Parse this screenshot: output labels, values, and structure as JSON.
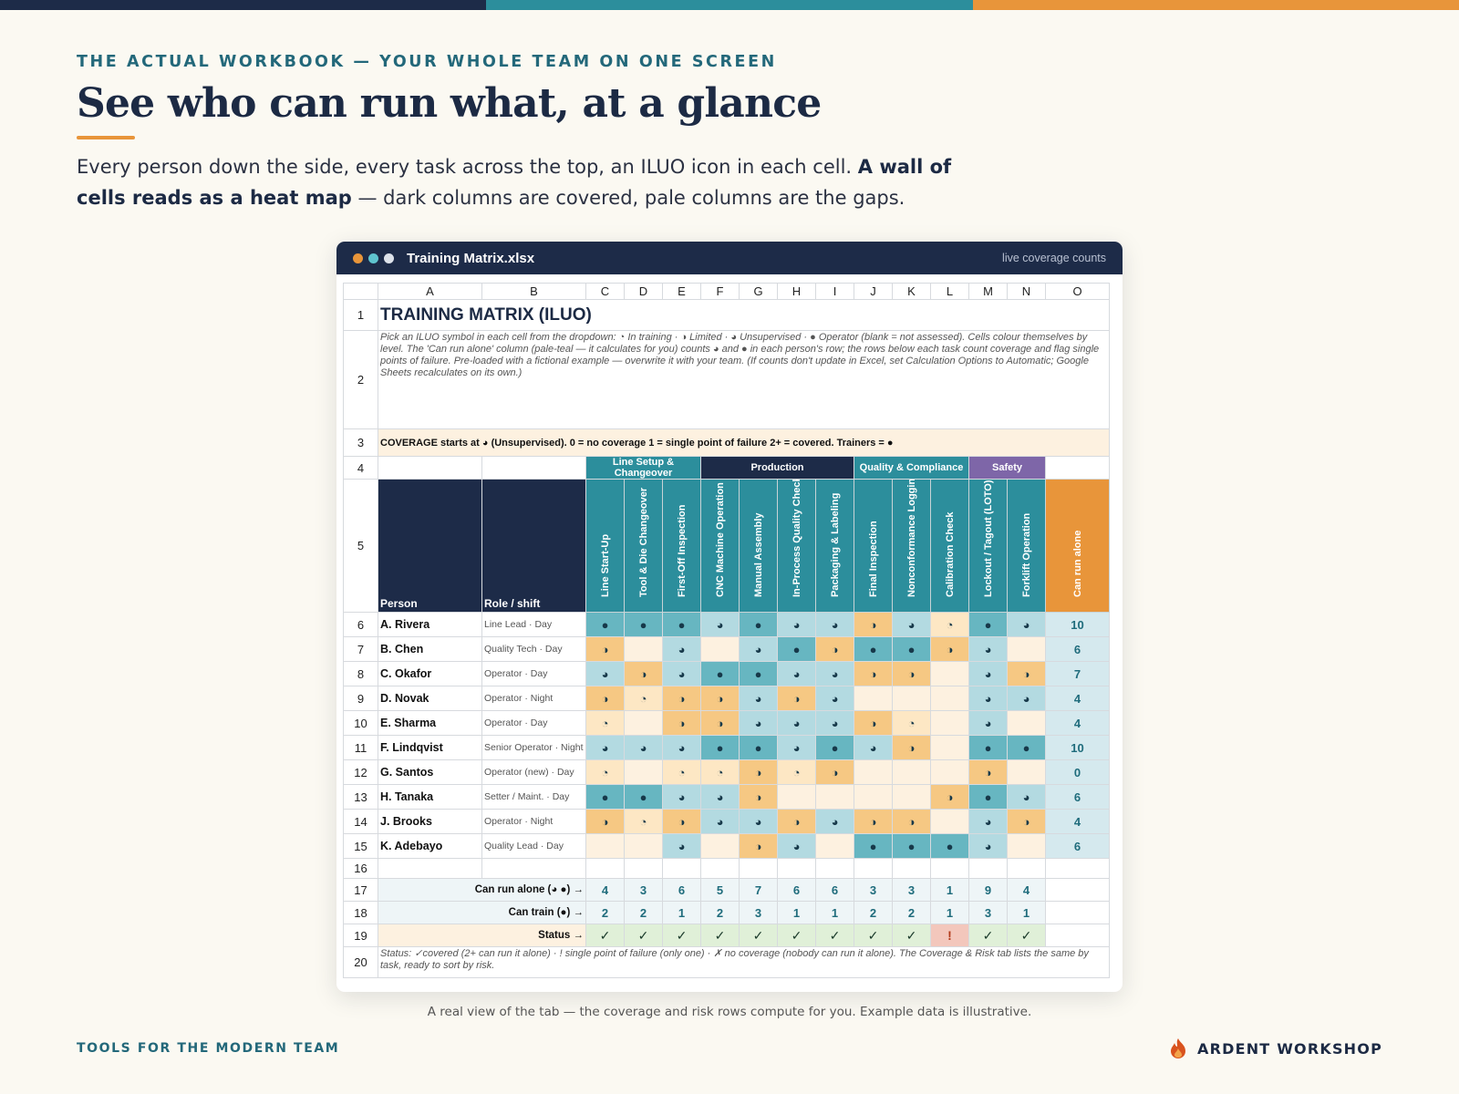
{
  "colors": {
    "navy": "#1d2b48",
    "teal": "#2c8e9c",
    "orange": "#e8953a",
    "purple": "#7e66a8",
    "accent_text": "#23687a"
  },
  "header": {
    "eyebrow": "THE ACTUAL WORKBOOK — YOUR WHOLE TEAM ON ONE SCREEN",
    "title": "See who can run what, at a glance",
    "lede_1": "Every person down the side, every task across the top, an ILUO icon in each cell. ",
    "lede_bold": "A wall of cells reads as a heat map",
    "lede_2": " — dark columns are covered, pale columns are the gaps."
  },
  "window": {
    "filename": "Training Matrix.xlsx",
    "right_label": "live coverage counts",
    "dots": [
      "#e8953a",
      "#5fc4cf",
      "#dde2ea"
    ]
  },
  "sheet": {
    "columns": [
      "A",
      "B",
      "C",
      "D",
      "E",
      "F",
      "G",
      "H",
      "I",
      "J",
      "K",
      "L",
      "M",
      "N",
      "O"
    ],
    "row_numbers": [
      "1",
      "2",
      "3",
      "4",
      "5",
      "6",
      "7",
      "8",
      "9",
      "10",
      "11",
      "12",
      "13",
      "14",
      "15",
      "16",
      "17",
      "18",
      "19",
      "20"
    ],
    "title": "TRAINING MATRIX  (ILUO)",
    "instructions": "Pick an ILUO symbol in each cell from the dropdown: ◔ In training · ◑ Limited · ◕ Unsupervised · ● Operator (blank = not assessed). Cells colour themselves by level. The 'Can run alone' column (pale-teal — it calculates for you) counts ◕ and ● in each person's row; the rows below each task count coverage and flag single points of failure. Pre-loaded with a fictional example — overwrite it with your team. (If counts don't update in Excel, set Calculation Options to Automatic; Google Sheets recalculates on its own.)",
    "coverage_note": "COVERAGE starts at ◕ (Unsupervised).   0 = no coverage   1 = single point of failure   2+ = covered.   Trainers = ●",
    "groups": [
      {
        "label": "Line Setup & Changeover",
        "span": 3,
        "color": "#2c8e9c"
      },
      {
        "label": "Production",
        "span": 4,
        "color": "#1d2b48"
      },
      {
        "label": "Quality & Compliance",
        "span": 3,
        "color": "#2c8e9c"
      },
      {
        "label": "Safety",
        "span": 2,
        "color": "#7e66a8"
      }
    ],
    "person_header": "Person",
    "role_header": "Role / shift",
    "tasks": [
      "Line Start-Up",
      "Tool & Die Changeover",
      "First-Off Inspection",
      "CNC Machine Operation",
      "Manual Assembly",
      "In-Process Quality Check",
      "Packaging & Labeling",
      "Final Inspection",
      "Nonconformance Logging",
      "Calibration Check",
      "Lockout / Tagout (LOTO)",
      "Forklift Operation"
    ],
    "alone_header": "Can run alone",
    "legend": {
      "0": "",
      "1": "◔",
      "2": "◑",
      "3": "◕",
      "4": "●"
    },
    "level_colors": {
      "0": "#fdf1e0",
      "1": "#fde7c4",
      "2": "#f6c883",
      "3": "#b3dae1",
      "4": "#67b6c1"
    },
    "people": [
      {
        "name": "A. Rivera",
        "role": "Line Lead · Day",
        "levels": [
          4,
          4,
          4,
          3,
          4,
          3,
          3,
          2,
          3,
          1,
          4,
          3
        ],
        "alone": "10"
      },
      {
        "name": "B. Chen",
        "role": "Quality Tech · Day",
        "levels": [
          2,
          0,
          3,
          0,
          3,
          4,
          2,
          4,
          4,
          2,
          3,
          0
        ],
        "alone": "6"
      },
      {
        "name": "C. Okafor",
        "role": "Operator · Day",
        "levels": [
          3,
          2,
          3,
          4,
          4,
          3,
          3,
          2,
          2,
          0,
          3,
          2
        ],
        "alone": "7"
      },
      {
        "name": "D. Novak",
        "role": "Operator · Night",
        "levels": [
          2,
          1,
          2,
          2,
          3,
          2,
          3,
          0,
          0,
          0,
          3,
          3
        ],
        "alone": "4"
      },
      {
        "name": "E. Sharma",
        "role": "Operator · Day",
        "levels": [
          1,
          0,
          2,
          2,
          3,
          3,
          3,
          2,
          1,
          0,
          3,
          0
        ],
        "alone": "4"
      },
      {
        "name": "F. Lindqvist",
        "role": "Senior Operator · Night",
        "levels": [
          3,
          3,
          3,
          4,
          4,
          3,
          4,
          3,
          2,
          0,
          4,
          4
        ],
        "alone": "10"
      },
      {
        "name": "G. Santos",
        "role": "Operator (new) · Day",
        "levels": [
          1,
          0,
          1,
          1,
          2,
          1,
          2,
          0,
          0,
          0,
          2,
          0
        ],
        "alone": "0"
      },
      {
        "name": "H. Tanaka",
        "role": "Setter / Maint. · Day",
        "levels": [
          4,
          4,
          3,
          3,
          2,
          0,
          0,
          0,
          0,
          2,
          4,
          3
        ],
        "alone": "6"
      },
      {
        "name": "J. Brooks",
        "role": "Operator · Night",
        "levels": [
          2,
          1,
          2,
          3,
          3,
          2,
          3,
          2,
          2,
          0,
          3,
          2
        ],
        "alone": "4"
      },
      {
        "name": "K. Adebayo",
        "role": "Quality Lead · Day",
        "levels": [
          0,
          0,
          3,
          0,
          2,
          3,
          0,
          4,
          4,
          4,
          3,
          0
        ],
        "alone": "6"
      }
    ],
    "summary": [
      {
        "label": "Can run alone (◕ ●) →",
        "values": [
          "4",
          "3",
          "6",
          "5",
          "7",
          "6",
          "6",
          "3",
          "3",
          "1",
          "9",
          "4"
        ]
      },
      {
        "label": "Can train (●) →",
        "values": [
          "2",
          "2",
          "1",
          "2",
          "3",
          "1",
          "1",
          "2",
          "2",
          "1",
          "3",
          "1"
        ]
      }
    ],
    "status_label": "Status →",
    "status": [
      "✓",
      "✓",
      "✓",
      "✓",
      "✓",
      "✓",
      "✓",
      "✓",
      "✓",
      "!",
      "✓",
      "✓"
    ],
    "footnote": "Status:  ✓covered (2+ can run it alone)   ·   ! single point of failure (only one)   ·   ✗ no coverage (nobody can run it alone).  The Coverage & Risk tab lists the same by task, ready to sort by risk."
  },
  "caption": "A real view of the tab — the coverage and risk rows compute for you. Example data is illustrative.",
  "footer": {
    "left": "TOOLS FOR THE MODERN TEAM",
    "brand": "ARDENT WORKSHOP",
    "brand_icon": "flame-logo-icon"
  }
}
